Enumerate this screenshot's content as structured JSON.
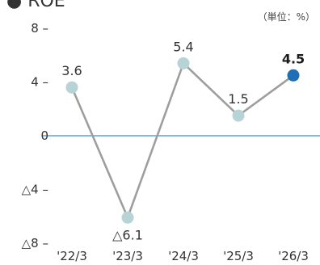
{
  "header": {
    "title": "● ROE",
    "unit": "（単位：%）"
  },
  "chart_data": {
    "type": "line",
    "categories": [
      "'22/3",
      "'23/3",
      "'24/3",
      "'25/3",
      "'26/3"
    ],
    "values": [
      3.6,
      -6.1,
      5.4,
      1.5,
      4.5
    ],
    "labels": [
      "3.6",
      "△6.1",
      "5.4",
      "1.5",
      "4.5"
    ],
    "highlight_index": 4,
    "ylim": [
      -8,
      8
    ],
    "yticks": [
      8,
      4,
      0,
      -4,
      -8
    ],
    "ytick_labels": [
      "8 –",
      "4 –",
      "0",
      "△4 –",
      "△8 –"
    ],
    "colors": {
      "line": "#9e9e9e",
      "point": "#b8d3d6",
      "highlight_point": "#1f6fb5",
      "zero_line": "#3a8fd0"
    }
  }
}
